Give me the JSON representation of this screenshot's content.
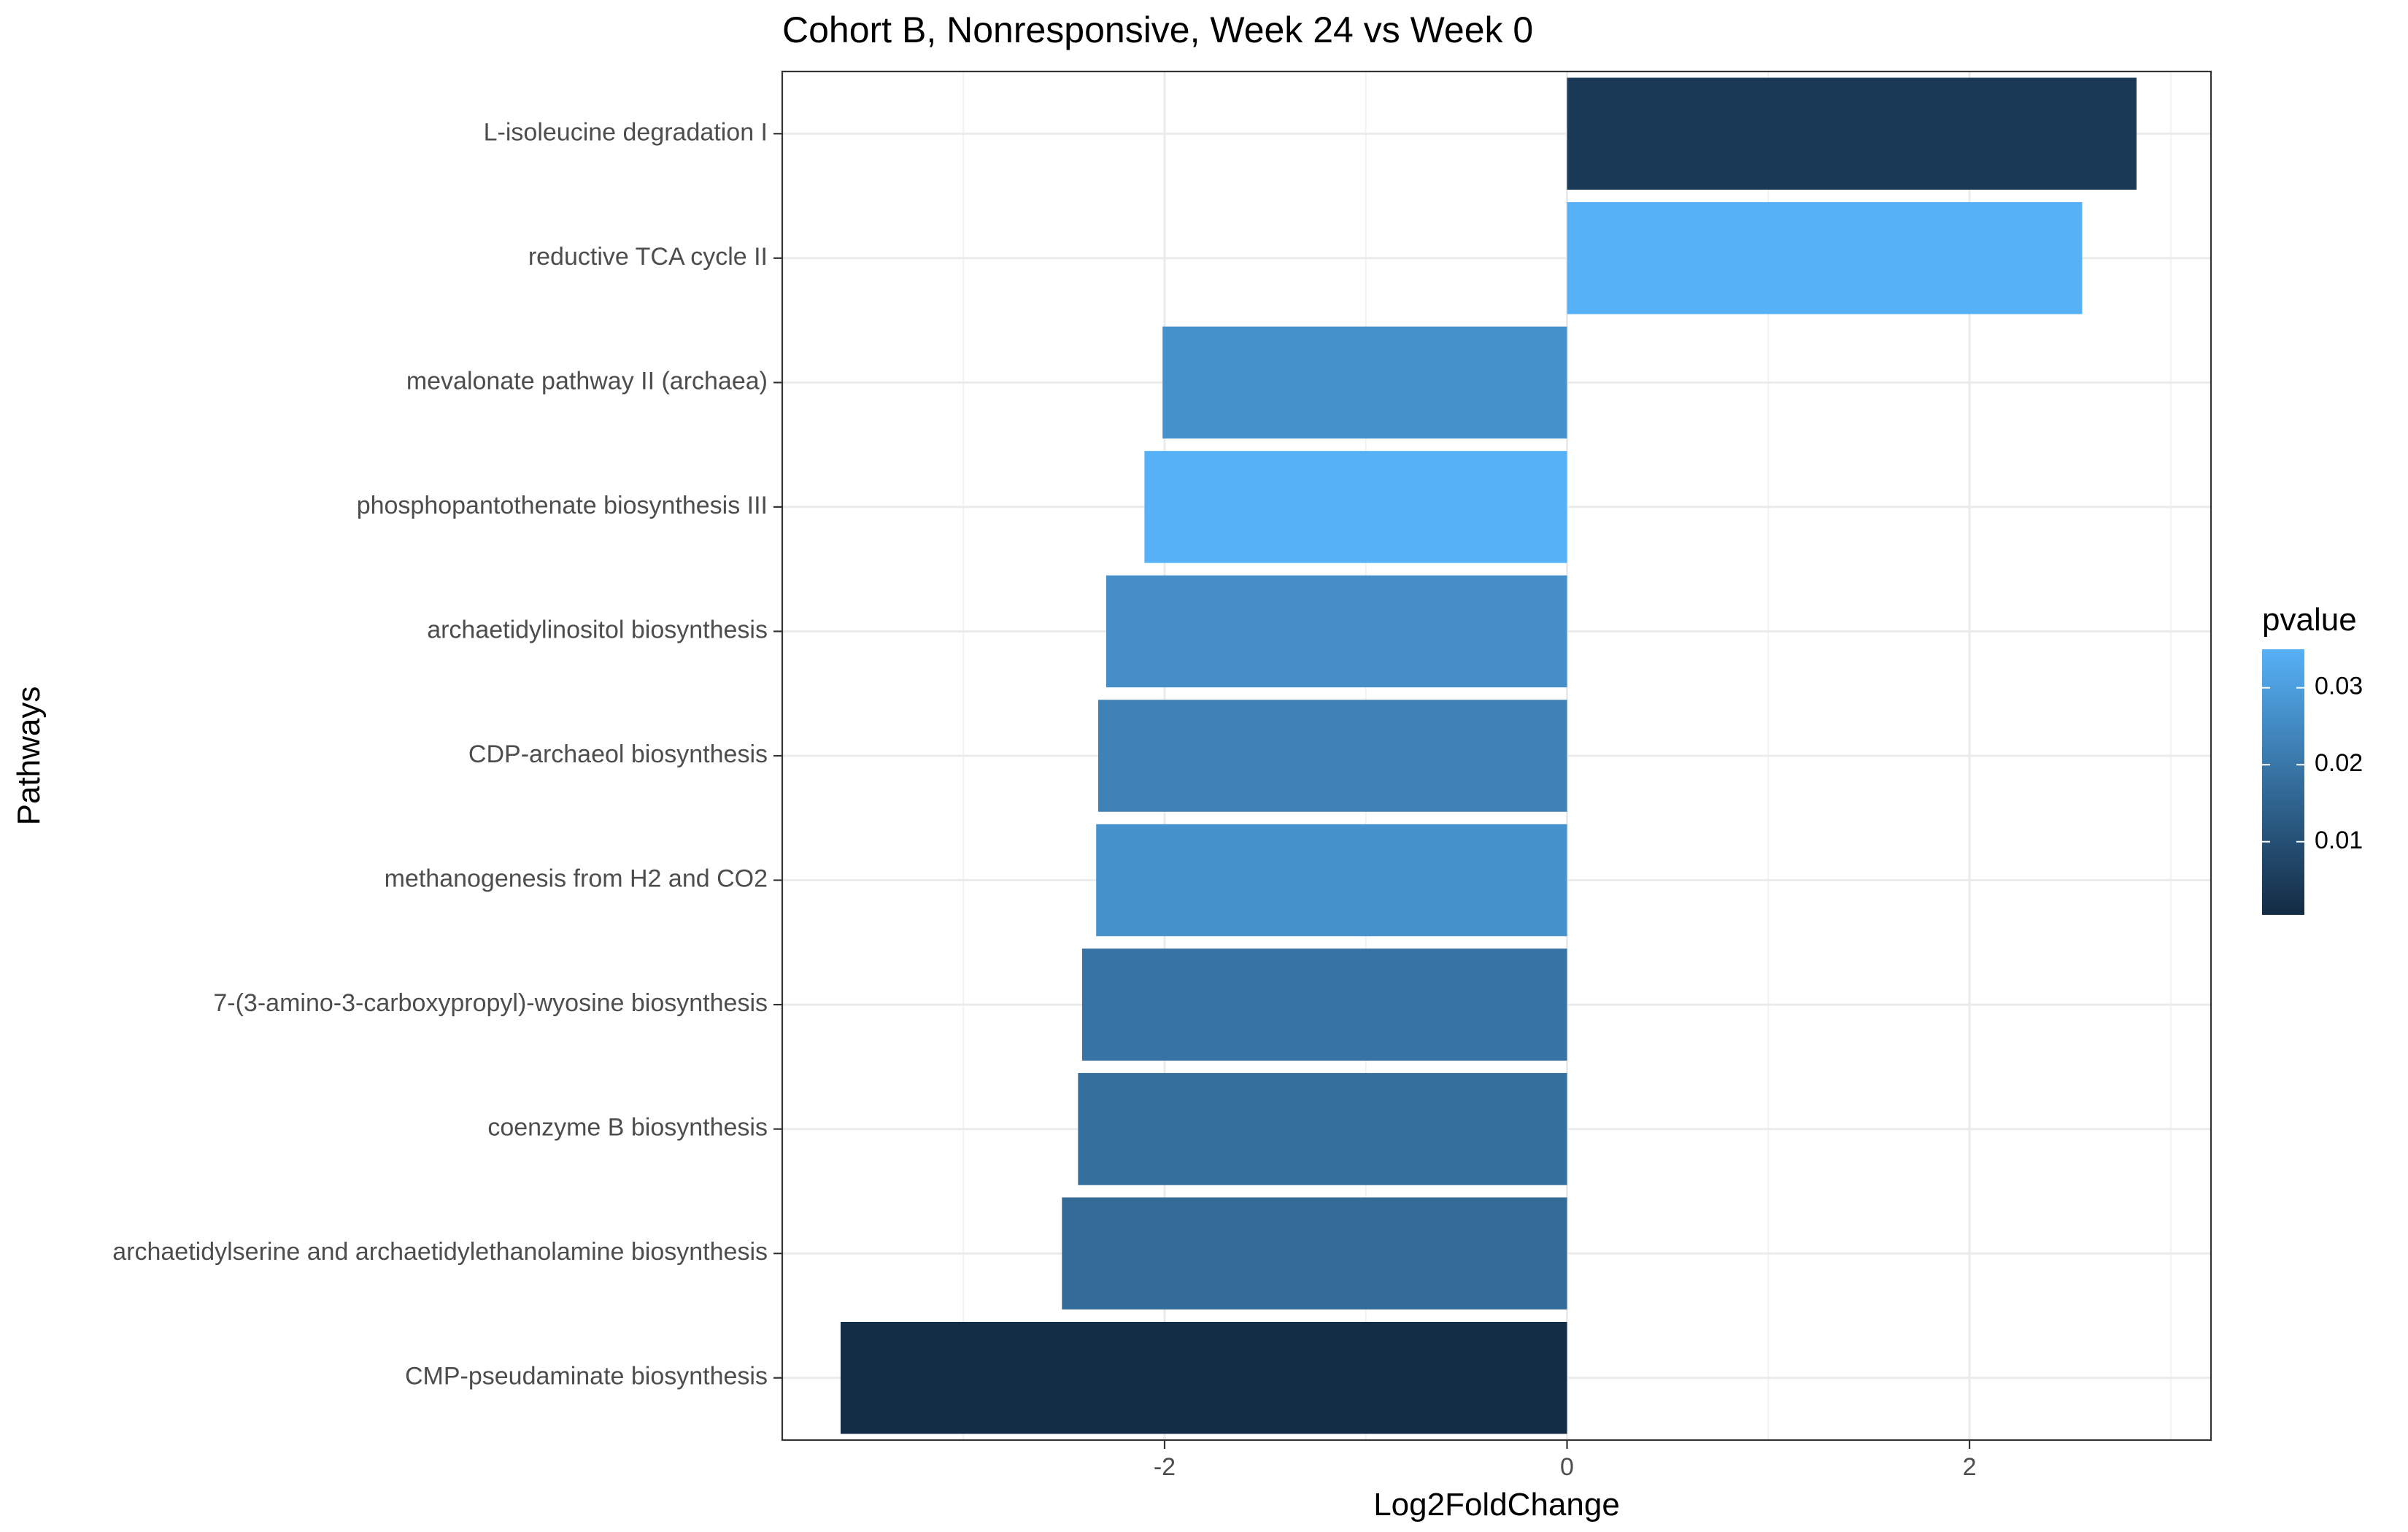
{
  "chart_data": {
    "type": "bar",
    "orientation": "horizontal",
    "title": "Cohort B, Nonresponsive, Week 24 vs Week 0",
    "xlabel": "Log2FoldChange",
    "ylabel": "Pathways",
    "xlim": [
      -3.9,
      3.2
    ],
    "xticks": [
      {
        "value": -2,
        "label": "-2"
      },
      {
        "value": 0,
        "label": "0"
      },
      {
        "value": 2,
        "label": "2"
      }
    ],
    "categories": [
      "L-isoleucine degradation I",
      "reductive TCA cycle II",
      "mevalonate pathway II (archaea)",
      "phosphopantothenate biosynthesis III",
      "archaetidylinositol biosynthesis",
      "CDP-archaeol biosynthesis",
      "methanogenesis from H2 and CO2",
      "7-(3-amino-3-carboxypropyl)-wyosine biosynthesis",
      "coenzyme B biosynthesis",
      "archaetidylserine and archaetidylethanolamine biosynthesis",
      "CMP-pseudaminate biosynthesis"
    ],
    "values": [
      2.83,
      2.56,
      -2.01,
      -2.1,
      -2.29,
      -2.33,
      -2.34,
      -2.41,
      -2.43,
      -2.51,
      -3.61
    ],
    "color_values": [
      0.004,
      0.035,
      0.027,
      0.035,
      0.026,
      0.023,
      0.027,
      0.019,
      0.018,
      0.017,
      0.001
    ],
    "color_legend": {
      "title": "pvalue",
      "min": 0.0005,
      "max": 0.035,
      "ticks": [
        {
          "value": 0.01,
          "label": "0.01"
        },
        {
          "value": 0.02,
          "label": "0.02"
        },
        {
          "value": 0.03,
          "label": "0.03"
        }
      ],
      "low_color": "#132B43",
      "high_color": "#56B1F7",
      "position": "right"
    },
    "grid": true,
    "theme": "bw"
  }
}
